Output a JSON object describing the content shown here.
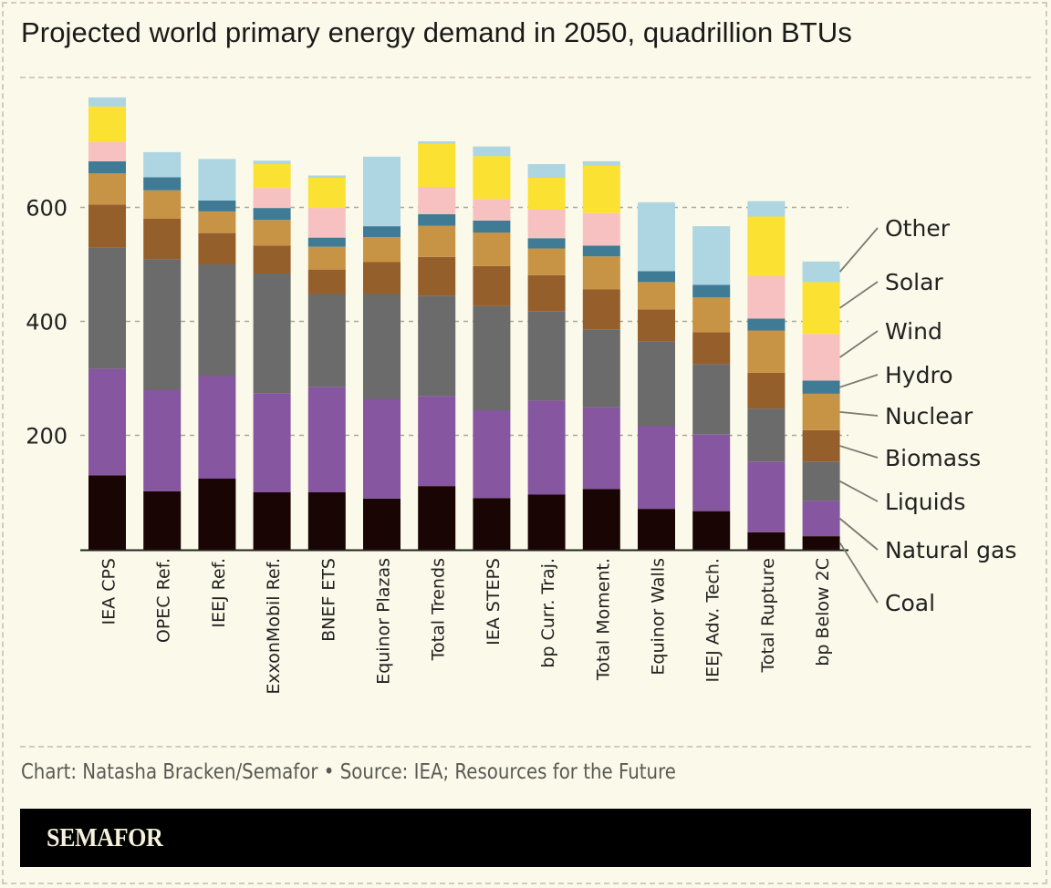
{
  "header": {
    "title": "Projected world primary energy demand in 2050, quadrillion BTUs"
  },
  "footer": {
    "credit": "Chart: Natasha Bracken/Semafor • Source: IEA; Resources for the Future",
    "brand": "SEMAFOR"
  },
  "chart_data": {
    "type": "bar",
    "stacked": true,
    "title": "Projected world primary energy demand in 2050, quadrillion BTUs",
    "xlabel": "",
    "ylabel": "",
    "ylim": [
      0,
      800
    ],
    "yticks": [
      200,
      400,
      600
    ],
    "grid": true,
    "legend_placement": "right (labels with leader lines to last bar)",
    "categories": [
      "IEA CPS",
      "OPEC Ref.",
      "IEEJ Ref.",
      "ExxonMobil Ref.",
      "BNEF ETS",
      "Equinor Plazas",
      "Total Trends",
      "IEA STEPS",
      "bp Curr. Traj.",
      "Total Moment.",
      "Equinor Walls",
      "IEEJ Adv. Tech.",
      "Total Rupture",
      "bp Below 2C"
    ],
    "series": [
      {
        "name": "Coal",
        "color": "#1a0505",
        "values": [
          130,
          102,
          124,
          100,
          100,
          89,
          111,
          90,
          96,
          106,
          71,
          67,
          30,
          23
        ]
      },
      {
        "name": "Natural gas",
        "color": "#8656a0",
        "values": [
          187,
          178,
          180,
          174,
          185,
          175,
          158,
          154,
          165,
          143,
          145,
          135,
          124,
          62
        ]
      },
      {
        "name": "Liquids",
        "color": "#6b6b6b",
        "values": [
          212,
          229,
          196,
          210,
          163,
          184,
          176,
          183,
          157,
          137,
          149,
          123,
          93,
          69
        ]
      },
      {
        "name": "Biomass",
        "color": "#955f2b",
        "values": [
          76,
          71,
          55,
          49,
          43,
          56,
          68,
          70,
          63,
          70,
          56,
          56,
          63,
          55
        ]
      },
      {
        "name": "Nuclear",
        "color": "#c79345",
        "values": [
          55,
          50,
          38,
          45,
          40,
          44,
          55,
          59,
          47,
          58,
          48,
          61,
          74,
          64
        ]
      },
      {
        "name": "Hydro",
        "color": "#3f7b94",
        "values": [
          21,
          23,
          19,
          21,
          16,
          19,
          20,
          21,
          18,
          19,
          19,
          22,
          21,
          23
        ]
      },
      {
        "name": "Wind",
        "color": "#f7c1c2",
        "values": [
          34,
          0,
          0,
          35,
          52,
          0,
          48,
          38,
          50,
          57,
          0,
          0,
          75,
          82
        ]
      },
      {
        "name": "Solar",
        "color": "#fae132",
        "values": [
          62,
          0,
          0,
          42,
          53,
          0,
          76,
          75,
          56,
          83,
          0,
          0,
          104,
          91
        ]
      },
      {
        "name": "Other",
        "color": "#add5e2",
        "values": [
          16,
          44,
          73,
          6,
          4,
          122,
          4,
          17,
          24,
          8,
          121,
          103,
          27,
          36
        ]
      }
    ]
  }
}
